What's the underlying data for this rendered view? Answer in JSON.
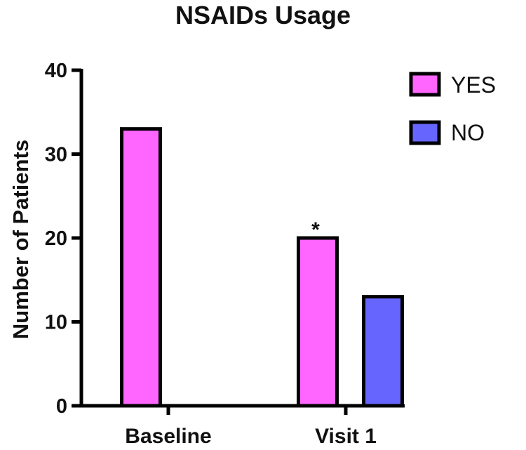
{
  "chart_data": {
    "type": "bar",
    "title": "NSAIDs Usage",
    "xlabel": "",
    "ylabel": "Number of Patients",
    "categories": [
      "Baseline",
      "Visit 1"
    ],
    "series": [
      {
        "name": "YES",
        "color": "#ff66ff",
        "values": [
          33,
          20
        ]
      },
      {
        "name": "NO",
        "color": "#6666ff",
        "values": [
          0,
          13
        ]
      }
    ],
    "ylim": [
      0,
      40
    ],
    "yticks": [
      "0",
      "10",
      "20",
      "30",
      "40"
    ],
    "annotations": [
      {
        "text": "*",
        "category": "Visit 1",
        "series": "YES"
      }
    ],
    "grid": false,
    "legend_position": "top-right"
  }
}
